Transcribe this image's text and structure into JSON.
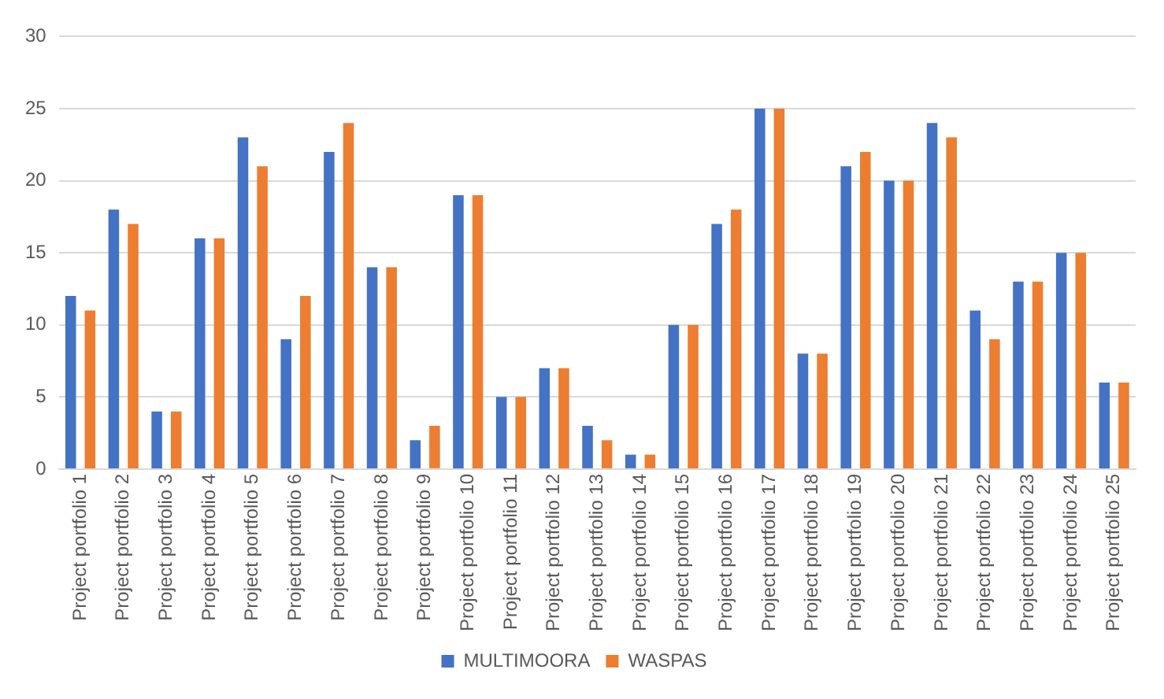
{
  "chart_data": {
    "type": "bar",
    "categories": [
      "Project portfolio 1",
      "Project portfolio 2",
      "Project portfolio 3",
      "Project portfolio 4",
      "Project portfolio 5",
      "Project portfolio 6",
      "Project portfolio 7",
      "Project portfolio 8",
      "Project portfolio 9",
      "Project portfolio 10",
      "Project portfolio 11",
      "Project portfolio 12",
      "Project portfolio 13",
      "Project portfolio 14",
      "Project portfolio 15",
      "Project portfolio 16",
      "Project portfolio 17",
      "Project portfolio 18",
      "Project portfolio 19",
      "Project portfolio 20",
      "Project portfolio 21",
      "Project portfolio 22",
      "Project portfolio 23",
      "Project portfolio 24",
      "Project portfolio 25"
    ],
    "series": [
      {
        "name": "MULTIMOORA",
        "color": "#4472c4",
        "values": [
          12,
          18,
          4,
          16,
          23,
          9,
          22,
          14,
          2,
          19,
          5,
          7,
          3,
          1,
          10,
          17,
          25,
          8,
          21,
          20,
          24,
          11,
          13,
          15,
          6
        ]
      },
      {
        "name": "WASPAS",
        "color": "#ed7d31",
        "values": [
          11,
          17,
          4,
          16,
          21,
          12,
          24,
          14,
          3,
          19,
          5,
          7,
          2,
          1,
          10,
          18,
          25,
          8,
          22,
          20,
          23,
          9,
          13,
          15,
          6
        ]
      }
    ],
    "ylim": [
      0,
      30
    ],
    "yticks": [
      0,
      5,
      10,
      15,
      20,
      25,
      30
    ],
    "grid": "y",
    "legend": "bottom"
  }
}
